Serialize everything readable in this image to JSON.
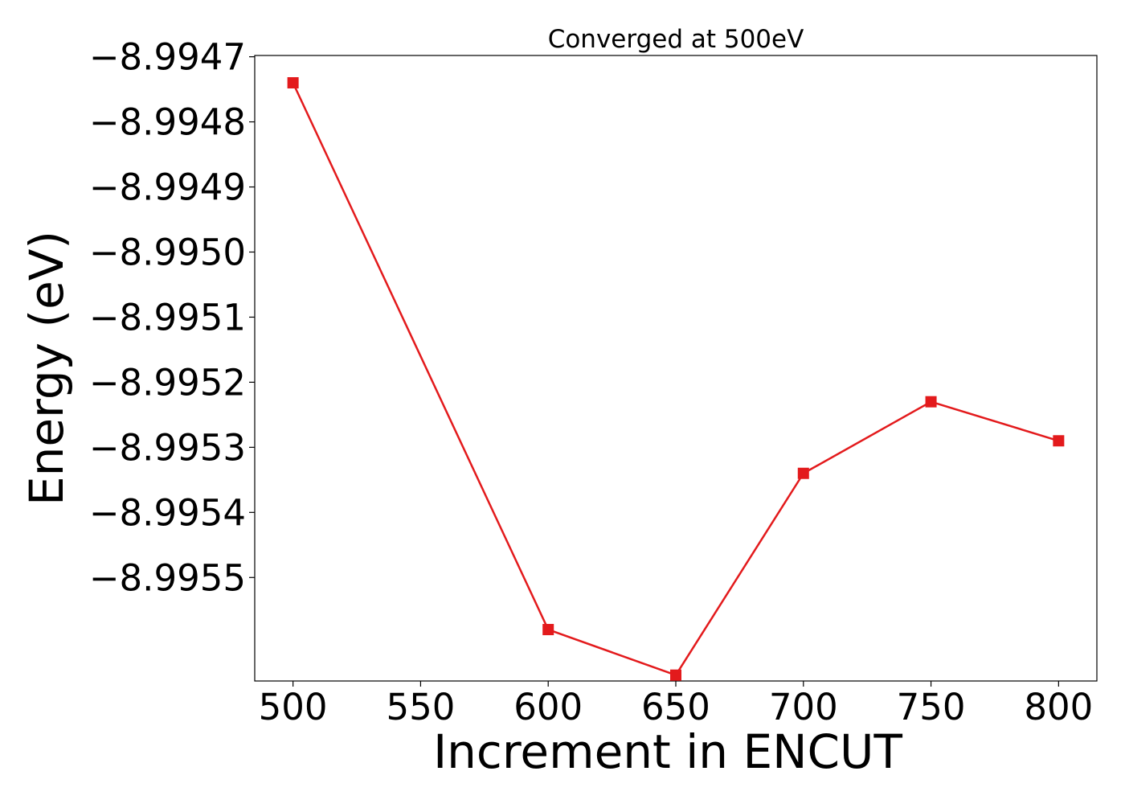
{
  "chart_data": {
    "type": "line",
    "title": "Converged at 500eV",
    "xlabel": "Increment in ENCUT",
    "ylabel": "Energy (eV)",
    "x": [
      500,
      600,
      650,
      700,
      750,
      800
    ],
    "series": [
      {
        "values": [
          -8.99474,
          -8.99558,
          -8.99565,
          -8.99534,
          -8.99523,
          -8.99529
        ],
        "color": "#e31a1c",
        "marker": "square"
      }
    ],
    "xlim": [
      485,
      815
    ],
    "ylim": [
      -8.995659,
      -8.994698
    ],
    "xticks": [
      500,
      550,
      600,
      650,
      700,
      750,
      800
    ],
    "xtick_labels": [
      "500",
      "550",
      "600",
      "650",
      "700",
      "750",
      "800"
    ],
    "yticks": [
      -8.9947,
      -8.9948,
      -8.9949,
      -8.995,
      -8.9951,
      -8.9952,
      -8.9953,
      -8.9954,
      -8.9955
    ],
    "ytick_labels": [
      "−8.9947",
      "−8.9948",
      "−8.9949",
      "−8.9950",
      "−8.9951",
      "−8.9952",
      "−8.9953",
      "−8.9954",
      "−8.9955"
    ],
    "grid": false,
    "legend": "none"
  }
}
